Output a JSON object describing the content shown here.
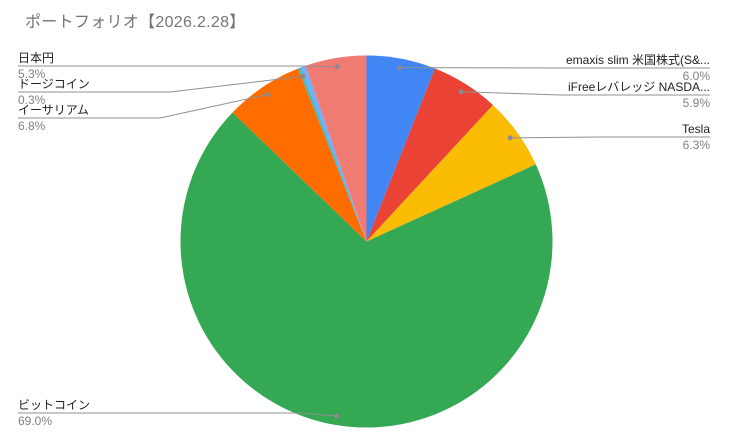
{
  "title": "ポートフォリオ【2026.2.28】",
  "colors": {
    "background": "#ffffff",
    "title_text": "#757575",
    "label_text": "#202124",
    "percent_text": "#818181",
    "leader_line": "#909090",
    "leader_dot": "#8a8a8a"
  },
  "chart_data": {
    "type": "pie",
    "title": "ポートフォリオ【2026.2.28】",
    "start_angle_clockwise_from_top_deg": 0,
    "legend_position": "labeled-callouts",
    "slices": [
      {
        "id": "emaxis-slim",
        "label": "emaxis slim 米国株式(S&...",
        "pct_label": "6.0%",
        "value": 6.0,
        "color": "#4285F4",
        "label_side": "right"
      },
      {
        "id": "ifree-nasdaq",
        "label": "iFreeレバレッジ NASDA...",
        "pct_label": "5.9%",
        "value": 5.9,
        "color": "#EA4335",
        "label_side": "right"
      },
      {
        "id": "tesla",
        "label": "Tesla",
        "pct_label": "6.3%",
        "value": 6.3,
        "color": "#FBBC04",
        "label_side": "right"
      },
      {
        "id": "bitcoin",
        "label": "ビットコイン",
        "pct_label": "69.0%",
        "value": 69.0,
        "color": "#34A853",
        "label_side": "left"
      },
      {
        "id": "ethereum",
        "label": "イーサリアム",
        "pct_label": "6.8%",
        "value": 6.8,
        "color": "#FF6D01",
        "label_side": "left"
      },
      {
        "id": "dogecoin",
        "label": "ドージコイン",
        "pct_label": "0.3%",
        "value": 0.3,
        "color": "#46BDC6",
        "label_side": "left"
      },
      {
        "id": "unlabeled",
        "label": "",
        "pct_label": "",
        "value": 0.4,
        "color": "#7BAAF7",
        "label_side": "none"
      },
      {
        "id": "jpy",
        "label": "日本円",
        "pct_label": "5.3%",
        "value": 5.3,
        "color": "#F07B72",
        "label_side": "left"
      }
    ]
  }
}
